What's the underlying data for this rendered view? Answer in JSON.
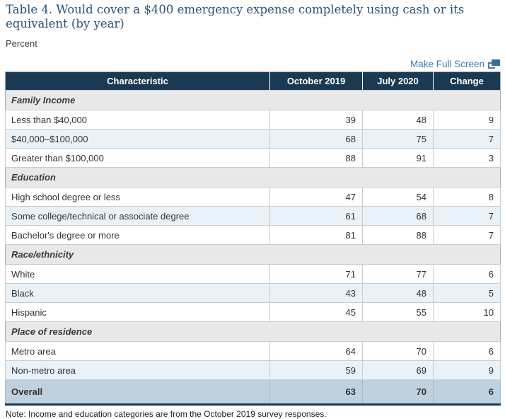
{
  "header": {
    "title": "Table 4. Would cover a $400 emergency expense completely using cash or its equivalent (by year)",
    "unit": "Percent"
  },
  "controls": {
    "full_screen_label": "Make Full Screen",
    "full_screen_icon": "expand-windows-icon"
  },
  "table": {
    "columns": [
      "Characteristic",
      "October 2019",
      "July 2020",
      "Change"
    ],
    "sections": [
      {
        "label": "Family Income",
        "rows": [
          {
            "label": "Less than $40,000",
            "values": [
              39,
              48,
              9
            ]
          },
          {
            "label": "$40,000–$100,000",
            "values": [
              68,
              75,
              7
            ]
          },
          {
            "label": "Greater than $100,000",
            "values": [
              88,
              91,
              3
            ]
          }
        ]
      },
      {
        "label": "Education",
        "rows": [
          {
            "label": "High school degree or less",
            "values": [
              47,
              54,
              8
            ]
          },
          {
            "label": "Some college/technical or associate degree",
            "values": [
              61,
              68,
              7
            ]
          },
          {
            "label": "Bachelor's degree or more",
            "values": [
              81,
              88,
              7
            ]
          }
        ]
      },
      {
        "label": "Race/ethnicity",
        "rows": [
          {
            "label": "White",
            "values": [
              71,
              77,
              6
            ]
          },
          {
            "label": "Black",
            "values": [
              43,
              48,
              5
            ]
          },
          {
            "label": "Hispanic",
            "values": [
              45,
              55,
              10
            ]
          }
        ]
      },
      {
        "label": "Place of residence",
        "rows": [
          {
            "label": "Metro area",
            "values": [
              64,
              70,
              6
            ]
          },
          {
            "label": "Non-metro area",
            "values": [
              59,
              69,
              9
            ]
          }
        ]
      }
    ],
    "summary_row": {
      "label": "Overall",
      "values": [
        63,
        70,
        6
      ]
    }
  },
  "note": "Note: Income and education categories are from the October 2019 survey responses.",
  "colors": {
    "header_bg": "#1a3a54",
    "section_bg": "#e8e8e8",
    "alt_row_bg": "#e9f2f9",
    "summary_row_bg": "#bfd0de",
    "title_color": "#2a5273",
    "link_color": "#3e7ca9"
  }
}
